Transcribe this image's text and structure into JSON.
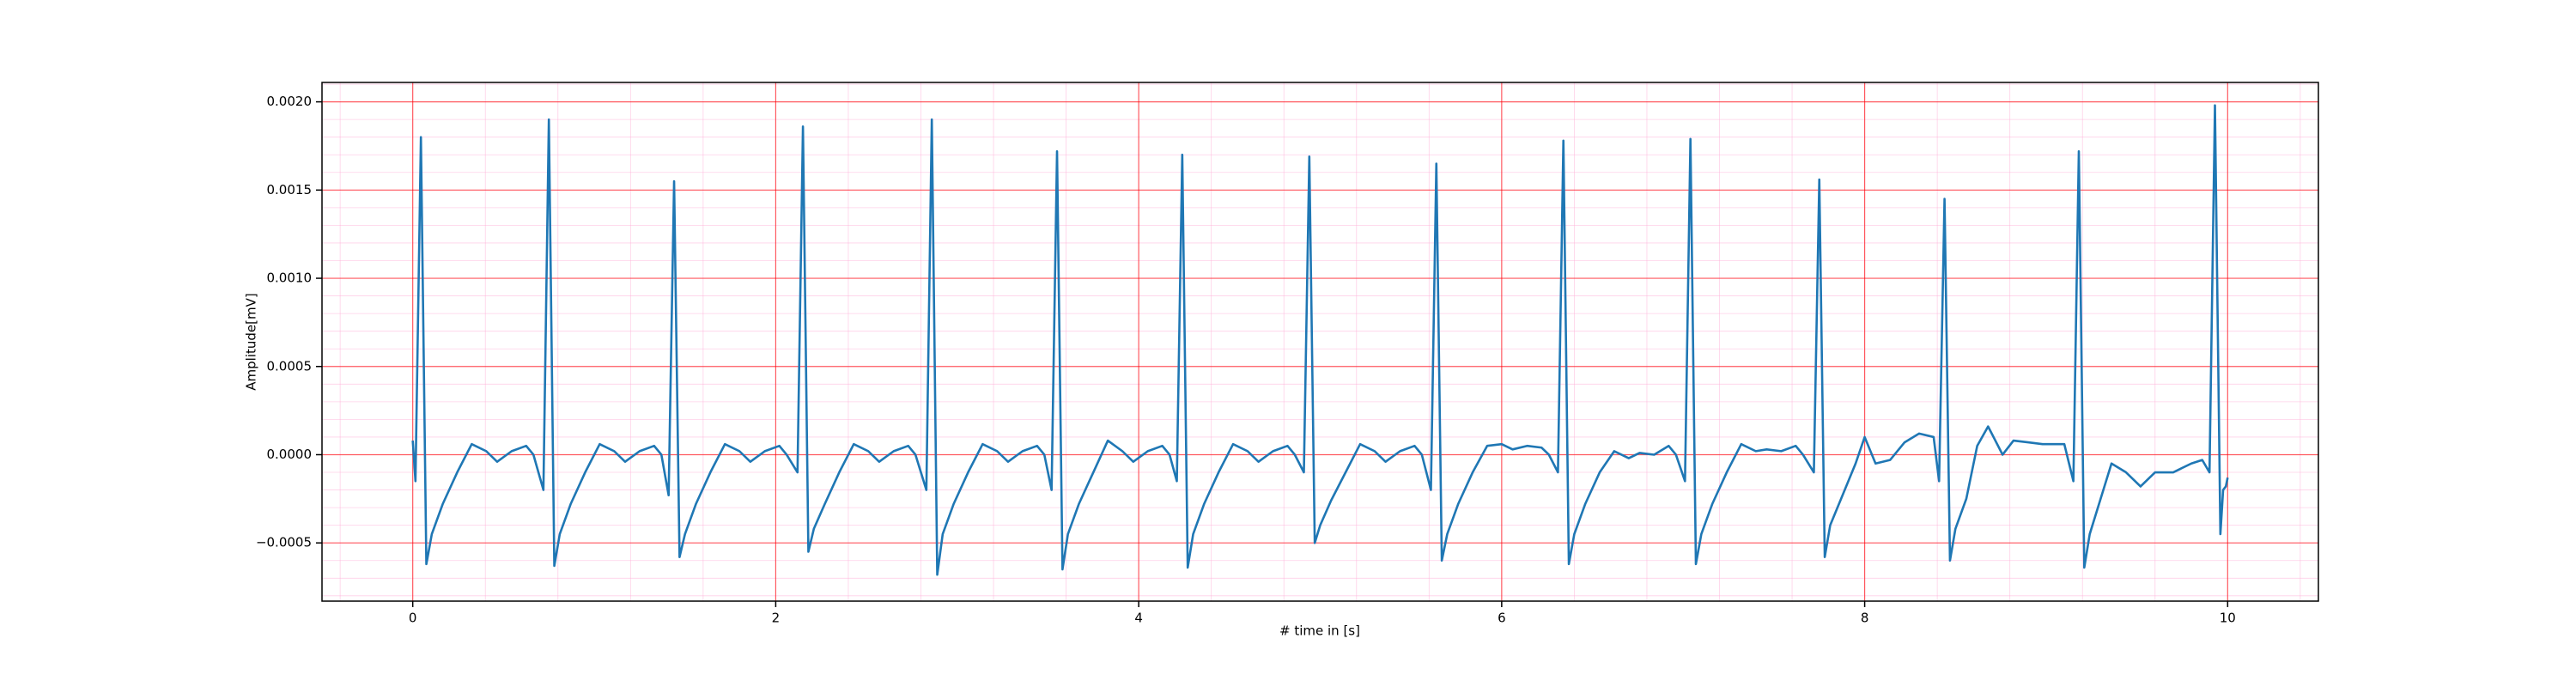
{
  "chart_data": {
    "type": "line",
    "xlabel": "# time in [s]",
    "ylabel": "Amplitude[mV]",
    "xlim": [
      -0.5,
      10.5
    ],
    "ylim": [
      -0.00083,
      0.00211
    ],
    "xticks": [
      0,
      2,
      4,
      6,
      8,
      10
    ],
    "yticks": [
      {
        "value": -0.0005,
        "label": "−0.0005"
      },
      {
        "value": 0,
        "label": "0.0000"
      },
      {
        "value": 0.0005,
        "label": "0.0005"
      },
      {
        "value": 0.001,
        "label": "0.0010"
      },
      {
        "value": 0.0015,
        "label": "0.0015"
      },
      {
        "value": 0.002,
        "label": "0.0020"
      }
    ],
    "grid": true,
    "grid_color": "#ff0000",
    "minor_grid_color": "#ffb0d8",
    "series": [
      {
        "color": "#1f77b4",
        "x": [
          0,
          0.015,
          0.045,
          0.075,
          0.105,
          0.165,
          0.245,
          0.325,
          0.405,
          0.465,
          0.545,
          0.625,
          0.665,
          0.72,
          0.75,
          0.78,
          0.81,
          0.87,
          0.95,
          1.03,
          1.11,
          1.17,
          1.25,
          1.33,
          1.37,
          1.41,
          1.44,
          1.47,
          1.5,
          1.56,
          1.64,
          1.72,
          1.8,
          1.86,
          1.94,
          2.02,
          2.06,
          2.12,
          2.15,
          2.18,
          2.21,
          2.27,
          2.35,
          2.43,
          2.51,
          2.57,
          2.65,
          2.73,
          2.77,
          2.83,
          2.86,
          2.89,
          2.92,
          2.98,
          3.06,
          3.14,
          3.22,
          3.28,
          3.36,
          3.44,
          3.48,
          3.52,
          3.55,
          3.58,
          3.61,
          3.67,
          3.75,
          3.83,
          3.91,
          3.97,
          4.05,
          4.13,
          4.17,
          4.21,
          4.24,
          4.27,
          4.3,
          4.36,
          4.44,
          4.52,
          4.6,
          4.66,
          4.74,
          4.82,
          4.86,
          4.91,
          4.94,
          4.97,
          5.0,
          5.06,
          5.14,
          5.22,
          5.3,
          5.36,
          5.44,
          5.52,
          5.56,
          5.61,
          5.64,
          5.67,
          5.7,
          5.76,
          5.84,
          5.92,
          6.0,
          6.06,
          6.14,
          6.22,
          6.26,
          6.31,
          6.34,
          6.37,
          6.4,
          6.46,
          6.54,
          6.62,
          6.7,
          6.76,
          6.84,
          6.92,
          6.96,
          7.01,
          7.04,
          7.07,
          7.1,
          7.16,
          7.24,
          7.32,
          7.4,
          7.46,
          7.54,
          7.62,
          7.66,
          7.72,
          7.75,
          7.78,
          7.81,
          7.87,
          7.95,
          8.0,
          8.06,
          8.14,
          8.22,
          8.3,
          8.38,
          8.41,
          8.44,
          8.47,
          8.5,
          8.56,
          8.62,
          8.68,
          8.76,
          8.82,
          8.9,
          8.98,
          9.1,
          9.15,
          9.18,
          9.21,
          9.24,
          9.3,
          9.36,
          9.44,
          9.52,
          9.6,
          9.7,
          9.8,
          9.86,
          9.9,
          9.93,
          9.96,
          9.975,
          9.99,
          10.0
        ],
        "values": [
          8e-05,
          -0.00015,
          0.0018,
          -0.00062,
          -0.00045,
          -0.00028,
          -0.0001,
          6e-05,
          2e-05,
          -4e-05,
          2e-05,
          5e-05,
          0.0,
          -0.0002,
          0.0019,
          -0.00063,
          -0.00045,
          -0.00028,
          -0.0001,
          6e-05,
          2e-05,
          -4e-05,
          2e-05,
          5e-05,
          0.0,
          -0.00023,
          0.00155,
          -0.00058,
          -0.00045,
          -0.00028,
          -0.0001,
          6e-05,
          2e-05,
          -4e-05,
          2e-05,
          5e-05,
          0.0,
          -0.0001,
          0.00186,
          -0.00055,
          -0.00042,
          -0.00028,
          -0.0001,
          6e-05,
          2e-05,
          -4e-05,
          2e-05,
          5e-05,
          0.0,
          -0.0002,
          0.0019,
          -0.00068,
          -0.00045,
          -0.00028,
          -0.0001,
          6e-05,
          2e-05,
          -4e-05,
          2e-05,
          5e-05,
          0.0,
          -0.0002,
          0.00172,
          -0.00065,
          -0.00045,
          -0.00028,
          -0.0001,
          8e-05,
          2e-05,
          -4e-05,
          2e-05,
          5e-05,
          0.0,
          -0.00015,
          0.0017,
          -0.00064,
          -0.00045,
          -0.00028,
          -0.0001,
          6e-05,
          2e-05,
          -4e-05,
          2e-05,
          5e-05,
          0.0,
          -0.0001,
          0.00169,
          -0.0005,
          -0.0004,
          -0.00026,
          -0.0001,
          6e-05,
          2e-05,
          -4e-05,
          2e-05,
          5e-05,
          0.0,
          -0.0002,
          0.00165,
          -0.0006,
          -0.00045,
          -0.00028,
          -0.0001,
          5e-05,
          6e-05,
          3e-05,
          5e-05,
          4e-05,
          0.0,
          -0.0001,
          0.00178,
          -0.00062,
          -0.00045,
          -0.00028,
          -0.0001,
          2e-05,
          -2e-05,
          1e-05,
          0.0,
          5e-05,
          0.0,
          -0.00015,
          0.00179,
          -0.00062,
          -0.00045,
          -0.00028,
          -0.0001,
          6e-05,
          2e-05,
          3e-05,
          2e-05,
          5e-05,
          0.0,
          -0.0001,
          0.00156,
          -0.00058,
          -0.0004,
          -0.00025,
          -5e-05,
          0.0001,
          -5e-05,
          -3e-05,
          7e-05,
          0.00012,
          0.0001,
          -0.00015,
          0.00145,
          -0.0006,
          -0.00042,
          -0.00025,
          5e-05,
          0.00016,
          0.0,
          8e-05,
          7e-05,
          6e-05,
          6e-05,
          -0.00015,
          0.00172,
          -0.00064,
          -0.00045,
          -0.00025,
          -5e-05,
          -0.0001,
          -0.00018,
          -0.0001,
          -0.0001,
          -5e-05,
          -3e-05,
          -0.0001,
          0.00198,
          -0.00045,
          -0.0002,
          -0.00018,
          -0.00013
        ]
      }
    ]
  }
}
